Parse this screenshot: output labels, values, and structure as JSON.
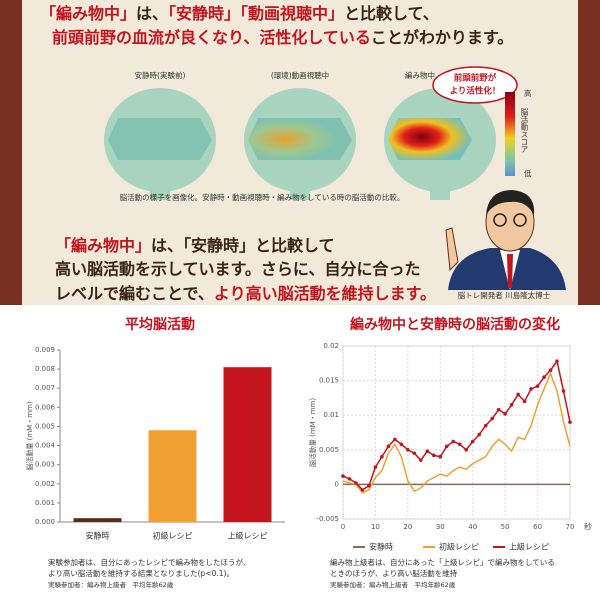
{
  "headline": {
    "line1": [
      "「編み物中」",
      "は、",
      "「安静時」「動画視聴中」",
      "と比較して、"
    ],
    "line2": [
      "前頭前野の血流が良くなり、活性化している",
      "ことがわかります。"
    ]
  },
  "brains": {
    "labels": [
      "安静時(実験前)",
      "(環境)動画視聴中",
      "編み物中"
    ],
    "callout": [
      "前頭前野が",
      "より活性化！"
    ],
    "scale": [
      "高",
      "脳活動スコア",
      "低"
    ],
    "caption": "脳活動の様子を画像化。安静時・動画視聴時・編み物をしている時の脳活動の比較。"
  },
  "message": {
    "line1": [
      "「編み物中」",
      "は、「安静時」と比較して"
    ],
    "line2": "高い脳活動を示しています。さらに、自分に合った",
    "line3": [
      "レベルで編むことで、",
      "より高い脳活動を維持します。"
    ],
    "credit": "脳トレ開発者 川島隆太博士"
  },
  "chart_data": [
    {
      "type": "bar",
      "title": "平均脳活動",
      "ylabel": "脳活動量 (mM・mm)",
      "categories": [
        "安静時",
        "初級レシピ",
        "上級レシピ"
      ],
      "values": [
        0.0002,
        0.0048,
        0.0081
      ],
      "colors": [
        "#5a2a1e",
        "#f0a030",
        "#c4141e"
      ],
      "ylim": [
        0,
        0.009
      ],
      "yticks": [
        {
          "value": 0,
          "label": "0.000"
        },
        0.001,
        0.002,
        0.003,
        0.004,
        0.005,
        0.006,
        0.007,
        0.008,
        0.009
      ],
      "grid": false,
      "notes": [
        "実験参加者は、自分にあったレシピで編み物をしたほうが、",
        "より高い脳活動を維持する結果となりました(p<0.1)。",
        "実験参加者：編み物上級者　平均年齢62歳"
      ]
    },
    {
      "type": "line",
      "title": "編み物中と安静時の脳活動の変化",
      "ylabel": "脳活動量 (mM・mm)",
      "xlabel": "秒",
      "x": [
        0,
        2,
        4,
        6,
        8,
        10,
        12,
        14,
        16,
        18,
        20,
        22,
        24,
        26,
        28,
        30,
        32,
        34,
        36,
        38,
        40,
        42,
        44,
        46,
        48,
        50,
        52,
        54,
        56,
        58,
        60,
        62,
        64,
        66,
        68,
        70
      ],
      "series": [
        {
          "name": "安静時",
          "color": "#8a6a5a",
          "values": [
            0,
            0,
            0,
            0,
            0,
            0,
            0,
            0,
            0,
            0,
            0,
            0,
            0,
            0,
            0,
            0,
            0,
            0,
            0,
            0,
            0,
            0,
            0,
            0,
            0,
            0,
            0,
            0,
            0,
            0,
            0,
            0,
            0,
            0,
            0,
            0
          ]
        },
        {
          "name": "初級レシピ",
          "color": "#f0a030",
          "values": [
            0.0005,
            0.0002,
            0,
            -0.0012,
            -0.0008,
            0.001,
            0.002,
            0.0045,
            0.0058,
            0.004,
            0.0005,
            -0.001,
            -0.0005,
            0.0005,
            0.001,
            0.0015,
            0.0012,
            0.002,
            0.0025,
            0.0022,
            0.003,
            0.0035,
            0.004,
            0.0055,
            0.0065,
            0.0058,
            0.0048,
            0.0068,
            0.0065,
            0.0085,
            0.0115,
            0.0138,
            0.016,
            0.0135,
            0.009,
            0.0055
          ]
        },
        {
          "name": "上級レシピ",
          "color": "#c4141e",
          "marker": "circle",
          "values": [
            0.0012,
            0.0008,
            0.0002,
            -0.0008,
            -0.0002,
            0.0025,
            0.004,
            0.0055,
            0.0065,
            0.0058,
            0.005,
            0.0045,
            0.0035,
            0.0048,
            0.0042,
            0.004,
            0.0055,
            0.0062,
            0.0058,
            0.005,
            0.0062,
            0.0072,
            0.0085,
            0.0095,
            0.0108,
            0.0102,
            0.0115,
            0.013,
            0.012,
            0.0138,
            0.0142,
            0.0155,
            0.0165,
            0.0178,
            0.0135,
            0.009
          ]
        }
      ],
      "xlim": [
        0,
        70
      ],
      "ylim": [
        -0.005,
        0.02
      ],
      "xticks": [
        0,
        10,
        20,
        30,
        40,
        50,
        60,
        70
      ],
      "yticks": [
        -0.005,
        0,
        0.005,
        0.01,
        0.015,
        0.02
      ],
      "grid": true,
      "legend": "bottom",
      "notes": [
        "編み物上級者は、自分にあった「上級レシピ」で編み物をしている",
        "ときのほうが、より高い脳活動を維持",
        "実験参加者：編み物上級者　平均年齢62歳"
      ]
    }
  ]
}
